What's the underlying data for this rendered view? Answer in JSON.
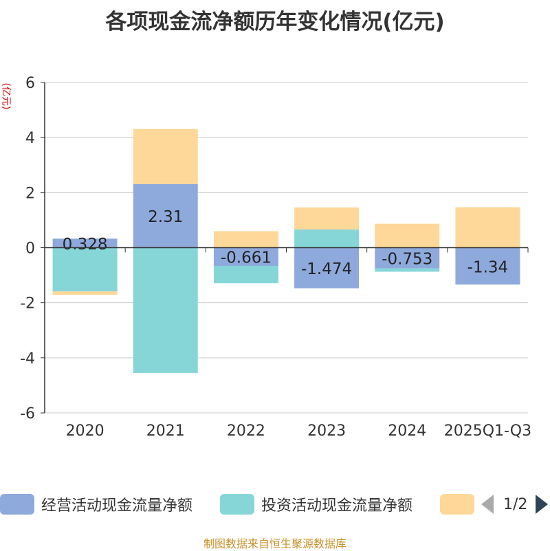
{
  "chart_data": {
    "type": "bar",
    "stacked": true,
    "title": "各项现金流净额历年变化情况(亿元)",
    "ylabel": "(亿元)",
    "categories": [
      "2020",
      "2021",
      "2022",
      "2023",
      "2024",
      "2025Q1-Q3"
    ],
    "ylim": [
      -6,
      6
    ],
    "yticks": [
      6,
      4,
      2,
      0,
      -2,
      -4,
      -6
    ],
    "grid": true,
    "legend_position": "bottom",
    "series": [
      {
        "name": "经营活动现金流量净额",
        "color": "#8eaadc",
        "values": [
          0.328,
          2.31,
          -0.661,
          -1.474,
          -0.753,
          -1.34
        ],
        "labels": [
          "0.328",
          "2.31",
          "-0.661",
          "-1.474",
          "-0.753",
          "-1.34"
        ]
      },
      {
        "name": "投资活动现金流量净额",
        "color": "#86d6d8",
        "values": [
          -1.59,
          -4.55,
          -0.63,
          0.66,
          -0.12,
          0.0
        ]
      },
      {
        "name": "",
        "color": "#fdd898",
        "values": [
          -0.12,
          2.0,
          0.6,
          0.8,
          0.87,
          1.47
        ]
      }
    ]
  },
  "legend": {
    "items": [
      "经营活动现金流量净额",
      "投资活动现金流量净额",
      ""
    ],
    "page": "1/2"
  },
  "footer": "制图数据来自恒生聚源数据库"
}
